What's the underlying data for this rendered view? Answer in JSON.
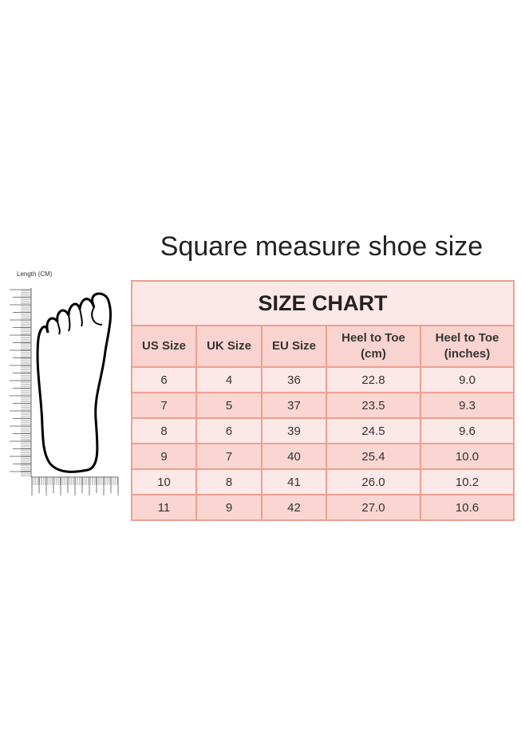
{
  "headline": "Square measure shoe size",
  "illustration": {
    "ruler_label": "Length (CM)",
    "icon": "foot-outline-icon"
  },
  "table": {
    "title": "SIZE CHART",
    "columns": [
      {
        "line1": "US Size",
        "line2": ""
      },
      {
        "line1": "UK Size",
        "line2": ""
      },
      {
        "line1": "EU Size",
        "line2": ""
      },
      {
        "line1": "Heel to Toe",
        "line2": "(cm)"
      },
      {
        "line1": "Heel to Toe",
        "line2": "(inches)"
      }
    ],
    "rows": [
      [
        "6",
        "4",
        "36",
        "22.8",
        "9.0"
      ],
      [
        "7",
        "5",
        "37",
        "23.5",
        "9.3"
      ],
      [
        "8",
        "6",
        "39",
        "24.5",
        "9.6"
      ],
      [
        "9",
        "7",
        "40",
        "25.4",
        "10.0"
      ],
      [
        "10",
        "8",
        "41",
        "26.0",
        "10.2"
      ],
      [
        "11",
        "9",
        "42",
        "27.0",
        "10.6"
      ]
    ]
  },
  "colors": {
    "border": "#eda08f",
    "header_bg": "#f9d3cf",
    "light_row": "#fde8e8",
    "dark_row": "#f9d6d2"
  }
}
